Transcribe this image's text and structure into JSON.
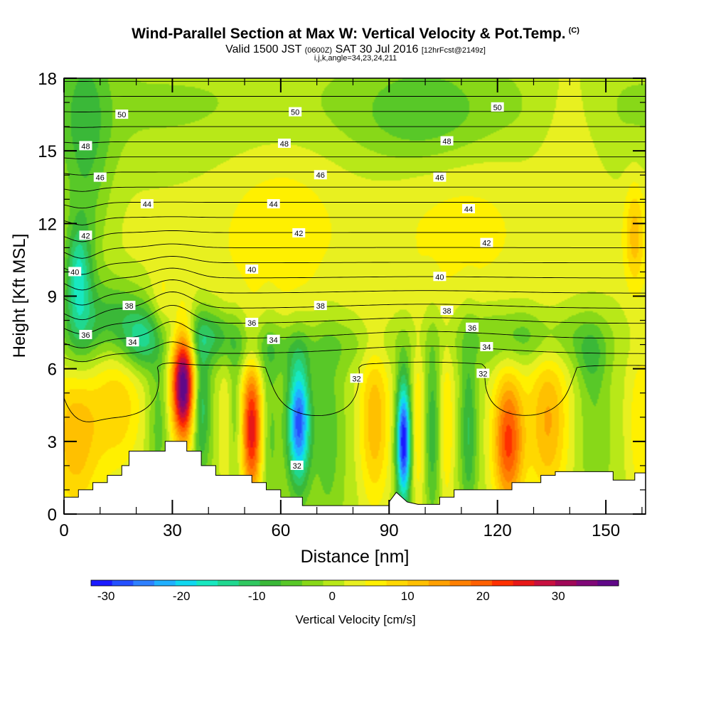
{
  "title": {
    "main": "Wind-Parallel Section at Max W: Vertical Velocity & Pot.Temp.",
    "copyright": "(C)",
    "valid_label": "Valid 1500 JST",
    "utc": "(0600Z)",
    "date": "SAT 30 Jul 2016",
    "forecast": "[12hrFcst@2149z]",
    "grid_info": "i,j,k,angle=34,23,24,211"
  },
  "chart_data": {
    "type": "heatmap",
    "xlabel": "Distance [nm]",
    "ylabel": "Height [Kft MSL]",
    "xlim": [
      0,
      161
    ],
    "ylim": [
      0,
      18
    ],
    "x_ticks": [
      0,
      30,
      60,
      90,
      120,
      150
    ],
    "y_ticks": [
      0,
      3,
      6,
      9,
      12,
      15,
      18
    ],
    "colorbar": {
      "label": "Vertical Velocity [cm/s]",
      "ticks": [
        -30,
        -20,
        -10,
        0,
        10,
        20,
        30
      ],
      "range": [
        -32,
        38
      ],
      "colors": [
        "#1a1aff",
        "#2450ff",
        "#2e80ff",
        "#20b0ff",
        "#10d8f0",
        "#18e8c0",
        "#20d890",
        "#30c860",
        "#3ab838",
        "#58c828",
        "#88d818",
        "#b8e818",
        "#e8f020",
        "#fff000",
        "#ffd800",
        "#ffc000",
        "#ffa000",
        "#ff8000",
        "#ff6000",
        "#ff3000",
        "#e81818",
        "#c81040",
        "#a00858",
        "#800878",
        "#600888"
      ]
    },
    "terrain": [
      [
        0,
        0.7
      ],
      [
        4,
        0.7
      ],
      [
        4,
        1.0
      ],
      [
        8,
        1.0
      ],
      [
        8,
        1.3
      ],
      [
        12,
        1.3
      ],
      [
        12,
        1.6
      ],
      [
        16,
        1.6
      ],
      [
        16,
        2.0
      ],
      [
        18,
        2.0
      ],
      [
        18,
        2.6
      ],
      [
        28,
        2.6
      ],
      [
        28,
        3.0
      ],
      [
        34,
        3.0
      ],
      [
        34,
        2.6
      ],
      [
        38,
        2.6
      ],
      [
        38,
        2.0
      ],
      [
        42,
        2.0
      ],
      [
        42,
        1.6
      ],
      [
        52,
        1.6
      ],
      [
        52,
        1.3
      ],
      [
        56,
        1.3
      ],
      [
        56,
        1.0
      ],
      [
        60,
        1.0
      ],
      [
        60,
        0.7
      ],
      [
        66,
        0.7
      ],
      [
        66,
        0.35
      ],
      [
        90,
        0.35
      ],
      [
        90,
        0.5
      ],
      [
        92,
        0.9
      ],
      [
        95,
        0.5
      ],
      [
        98,
        0.4
      ],
      [
        104,
        0.4
      ],
      [
        104,
        0.7
      ],
      [
        108,
        0.7
      ],
      [
        108,
        1.0
      ],
      [
        124,
        1.0
      ],
      [
        124,
        1.3
      ],
      [
        132,
        1.3
      ],
      [
        132,
        1.6
      ],
      [
        136,
        1.6
      ],
      [
        136,
        1.75
      ],
      [
        152,
        1.75
      ],
      [
        152,
        1.4
      ],
      [
        158,
        1.4
      ],
      [
        158,
        1.7
      ],
      [
        161,
        1.7
      ]
    ],
    "w_features": [
      {
        "x": 3,
        "z": 3.2,
        "w": 12,
        "sx": 5,
        "sz": 2.5
      },
      {
        "x": 15,
        "z": 4.5,
        "w": 9,
        "sx": 5,
        "sz": 2
      },
      {
        "x": 26,
        "z": 3.8,
        "w": -6,
        "sx": 2,
        "sz": 2
      },
      {
        "x": 33,
        "z": 5.3,
        "w": 38,
        "sx": 2.2,
        "sz": 1.6
      },
      {
        "x": 38,
        "z": 4.5,
        "w": -12,
        "sx": 1.8,
        "sz": 2
      },
      {
        "x": 45,
        "z": 3.5,
        "w": 5,
        "sx": 1.5,
        "sz": 2.5
      },
      {
        "x": 47,
        "z": 4,
        "w": -5,
        "sx": 1.5,
        "sz": 2
      },
      {
        "x": 52,
        "z": 3.5,
        "w": 26,
        "sx": 2,
        "sz": 2
      },
      {
        "x": 57,
        "z": 3.5,
        "w": -5,
        "sx": 2,
        "sz": 3
      },
      {
        "x": 65,
        "z": 3.8,
        "w": -28,
        "sx": 2.2,
        "sz": 1.8
      },
      {
        "x": 73,
        "z": 3.5,
        "w": -6,
        "sx": 3,
        "sz": 3
      },
      {
        "x": 86,
        "z": 3.8,
        "w": 12,
        "sx": 3,
        "sz": 2.5
      },
      {
        "x": 94,
        "z": 3,
        "w": -32,
        "sx": 1.4,
        "sz": 1.8
      },
      {
        "x": 98,
        "z": 3.5,
        "w": 7,
        "sx": 1.3,
        "sz": 2.5
      },
      {
        "x": 102,
        "z": 3.5,
        "w": -9,
        "sx": 1.4,
        "sz": 2.5
      },
      {
        "x": 106,
        "z": 3.5,
        "w": 7,
        "sx": 1.4,
        "sz": 2.5
      },
      {
        "x": 112,
        "z": 3.5,
        "w": -10,
        "sx": 1.6,
        "sz": 2.5
      },
      {
        "x": 123,
        "z": 3,
        "w": 22,
        "sx": 3,
        "sz": 2
      },
      {
        "x": 134,
        "z": 3.8,
        "w": 13,
        "sx": 4,
        "sz": 2.5
      },
      {
        "x": 147,
        "z": 3.5,
        "w": -4,
        "sx": 3,
        "sz": 2
      },
      {
        "x": 160,
        "z": 3.5,
        "w": 7,
        "sx": 3,
        "sz": 2.5
      },
      {
        "x": 4,
        "z": 10,
        "w": -14,
        "sx": 2.5,
        "sz": 1.4
      },
      {
        "x": 4,
        "z": 7.5,
        "w": -10,
        "sx": 4,
        "sz": 1.3
      },
      {
        "x": 15,
        "z": 8,
        "w": -10,
        "sx": 6,
        "sz": 1.2
      },
      {
        "x": 22,
        "z": 7.2,
        "w": -12,
        "sx": 4,
        "sz": 0.9
      },
      {
        "x": 27,
        "z": 8.6,
        "w": 4,
        "sx": 2,
        "sz": 1.2
      },
      {
        "x": 40,
        "z": 7.4,
        "w": -10,
        "sx": 6,
        "sz": 0.8
      },
      {
        "x": 55,
        "z": 6.8,
        "w": -6,
        "sx": 8,
        "sz": 0.8
      },
      {
        "x": 80,
        "z": 7,
        "w": -4,
        "sx": 12,
        "sz": 0.8
      },
      {
        "x": 128,
        "z": 7.3,
        "w": -8,
        "sx": 14,
        "sz": 0.9
      },
      {
        "x": 146,
        "z": 6.5,
        "w": -6,
        "sx": 3,
        "sz": 1
      },
      {
        "x": 6,
        "z": 15,
        "w": -8,
        "sx": 5,
        "sz": 4
      },
      {
        "x": 100,
        "z": 16.5,
        "w": -6,
        "sx": 12,
        "sz": 1.5
      },
      {
        "x": 140,
        "z": 16,
        "w": 4,
        "sx": 6,
        "sz": 2.5
      },
      {
        "x": 158,
        "z": 11.5,
        "w": 9,
        "sx": 2,
        "sz": 1.5
      },
      {
        "x": 60,
        "z": 12,
        "w": 4,
        "sx": 12,
        "sz": 3
      },
      {
        "x": 110,
        "z": 12.5,
        "w": 3,
        "sx": 14,
        "sz": 3
      }
    ],
    "theta_contours": {
      "levels": [
        31,
        32,
        33,
        34,
        35,
        36,
        37,
        38,
        39,
        40,
        41,
        42,
        43,
        44,
        45,
        46,
        47,
        48,
        49,
        50,
        51
      ],
      "labels": [
        {
          "text": "32",
          "x": 81,
          "z": 5.6
        },
        {
          "text": "32",
          "x": 116,
          "z": 5.8
        },
        {
          "text": "32",
          "x": 64.5,
          "z": 2.0
        },
        {
          "text": "34",
          "x": 19,
          "z": 7.1
        },
        {
          "text": "34",
          "x": 58,
          "z": 7.2
        },
        {
          "text": "34",
          "x": 117,
          "z": 6.9
        },
        {
          "text": "36",
          "x": 6,
          "z": 7.4
        },
        {
          "text": "36",
          "x": 52,
          "z": 7.9
        },
        {
          "text": "36",
          "x": 113,
          "z": 7.7
        },
        {
          "text": "38",
          "x": 18,
          "z": 8.6
        },
        {
          "text": "38",
          "x": 71,
          "z": 8.6
        },
        {
          "text": "38",
          "x": 106,
          "z": 8.4
        },
        {
          "text": "40",
          "x": 3,
          "z": 10.0
        },
        {
          "text": "40",
          "x": 52,
          "z": 10.1
        },
        {
          "text": "40",
          "x": 104,
          "z": 9.8
        },
        {
          "text": "42",
          "x": 6,
          "z": 11.5
        },
        {
          "text": "42",
          "x": 65,
          "z": 11.6
        },
        {
          "text": "42",
          "x": 117,
          "z": 11.2
        },
        {
          "text": "44",
          "x": 23,
          "z": 12.8
        },
        {
          "text": "44",
          "x": 58,
          "z": 12.8
        },
        {
          "text": "44",
          "x": 112,
          "z": 12.6
        },
        {
          "text": "46",
          "x": 10,
          "z": 13.9
        },
        {
          "text": "46",
          "x": 71,
          "z": 14.0
        },
        {
          "text": "46",
          "x": 104,
          "z": 13.9
        },
        {
          "text": "48",
          "x": 6,
          "z": 15.2
        },
        {
          "text": "48",
          "x": 61,
          "z": 15.3
        },
        {
          "text": "48",
          "x": 106,
          "z": 15.4
        },
        {
          "text": "50",
          "x": 16,
          "z": 16.5
        },
        {
          "text": "50",
          "x": 64,
          "z": 16.6
        },
        {
          "text": "50",
          "x": 120,
          "z": 16.8
        }
      ]
    }
  }
}
